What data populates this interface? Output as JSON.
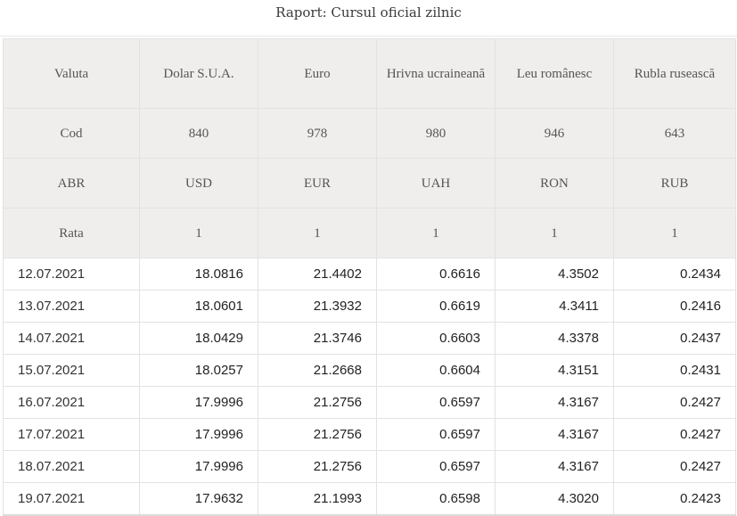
{
  "title": "Raport: Cursul oficial zilnic",
  "header_rows": [
    {
      "label": "Valuta",
      "cells": [
        "Dolar S.U.A.",
        "Euro",
        "Hrivna ucraineană",
        "Leu românesc",
        "Rubla rusească"
      ]
    },
    {
      "label": "Cod",
      "cells": [
        "840",
        "978",
        "980",
        "946",
        "643"
      ]
    },
    {
      "label": "ABR",
      "cells": [
        "USD",
        "EUR",
        "UAH",
        "RON",
        "RUB"
      ]
    },
    {
      "label": "Rata",
      "cells": [
        "1",
        "1",
        "1",
        "1",
        "1"
      ]
    }
  ],
  "rows": [
    {
      "date": "12.07.2021",
      "values": [
        "18.0816",
        "21.4402",
        "0.6616",
        "4.3502",
        "0.2434"
      ]
    },
    {
      "date": "13.07.2021",
      "values": [
        "18.0601",
        "21.3932",
        "0.6619",
        "4.3411",
        "0.2416"
      ]
    },
    {
      "date": "14.07.2021",
      "values": [
        "18.0429",
        "21.3746",
        "0.6603",
        "4.3378",
        "0.2437"
      ]
    },
    {
      "date": "15.07.2021",
      "values": [
        "18.0257",
        "21.2668",
        "0.6604",
        "4.3151",
        "0.2431"
      ]
    },
    {
      "date": "16.07.2021",
      "values": [
        "17.9996",
        "21.2756",
        "0.6597",
        "4.3167",
        "0.2427"
      ]
    },
    {
      "date": "17.07.2021",
      "values": [
        "17.9996",
        "21.2756",
        "0.6597",
        "4.3167",
        "0.2427"
      ]
    },
    {
      "date": "18.07.2021",
      "values": [
        "17.9996",
        "21.2756",
        "0.6597",
        "4.3167",
        "0.2427"
      ]
    },
    {
      "date": "19.07.2021",
      "values": [
        "17.9632",
        "21.1993",
        "0.6598",
        "4.3020",
        "0.2423"
      ]
    }
  ]
}
